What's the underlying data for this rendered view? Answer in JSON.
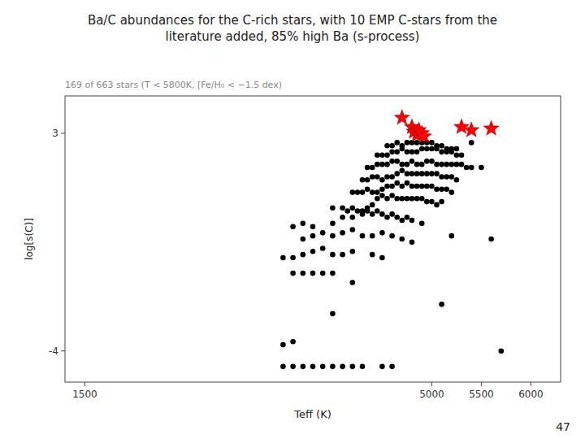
{
  "chart_data": {
    "type": "scatter",
    "title": "Ba/C abundances for the C-rich stars, with 10 EMP C-stars from the\nliterature added, 85% high Ba (s-process)",
    "subtitle": "169 of 663 stars (T < 5800K, [Fe/H₀ < −1.5 dex)",
    "xlabel": "Teff (K)",
    "ylabel": "log[s(C)]",
    "annotations": [
      "47"
    ],
    "xlim": [
      1300,
      6300
    ],
    "ylim": [
      -5.0,
      4.2
    ],
    "xticks": [
      1500,
      5000,
      5500,
      6000
    ],
    "yticks": [
      -4,
      3
    ],
    "grid": false,
    "color": "#ffffff",
    "series": [
      {
        "color": "black",
        "marker": "circle",
        "x": [
          3500,
          3600,
          3700,
          3800,
          3900,
          4000,
          4100,
          4200,
          4300,
          4500,
          4600,
          3500,
          3600,
          4000,
          5100,
          4200,
          5700,
          3600,
          3700,
          3800,
          3900,
          4000,
          3500,
          3600,
          3700,
          3800,
          3900,
          4000,
          4100,
          4200,
          4400,
          4500,
          3700,
          3800,
          3900,
          4000,
          4100,
          4200,
          4300,
          4400,
          4500,
          4600,
          4700,
          4800,
          5200,
          5600,
          3600,
          3700,
          3800,
          4000,
          4100,
          4200,
          4300,
          4350,
          4400,
          4450,
          4500,
          4550,
          4600,
          4650,
          4700,
          4750,
          4800,
          4900,
          4000,
          4100,
          4150,
          4200,
          4250,
          4300,
          4350,
          4400,
          4450,
          4500,
          4550,
          4600,
          4650,
          4700,
          4750,
          4800,
          4850,
          4900,
          4950,
          5000,
          5050,
          5100,
          4200,
          4250,
          4300,
          4350,
          4400,
          4450,
          4500,
          4550,
          4600,
          4650,
          4700,
          4750,
          4800,
          4850,
          4900,
          4950,
          5000,
          5050,
          5100,
          5150,
          5200,
          4300,
          4350,
          4400,
          4450,
          4500,
          4550,
          4600,
          4650,
          4700,
          4750,
          4800,
          4850,
          4900,
          4950,
          5000,
          5050,
          5100,
          5150,
          5200,
          5250,
          4350,
          4400,
          4450,
          4500,
          4550,
          4600,
          4650,
          4700,
          4750,
          4800,
          4850,
          4900,
          4950,
          5000,
          5050,
          5100,
          5150,
          5200,
          5250,
          5300,
          5350,
          5400,
          5500,
          4450,
          4500,
          4550,
          4600,
          4650,
          4700,
          4750,
          4800,
          4850,
          4900,
          4950,
          5000,
          5050,
          5100,
          5150,
          5200,
          5250,
          5300,
          4550,
          4600,
          4650,
          4700,
          4750,
          4800,
          4850,
          4900,
          4950,
          5000,
          5050,
          5100,
          5150,
          5200,
          5250,
          5400
        ],
        "values": [
          -4.5,
          -4.5,
          -4.5,
          -4.5,
          -4.5,
          -4.5,
          -4.5,
          -4.5,
          -4.5,
          -4.5,
          -4.5,
          -3.8,
          -3.7,
          -2.8,
          -2.5,
          -1.8,
          -4.0,
          -1.5,
          -1.5,
          -1.5,
          -1.5,
          -1.5,
          -1.0,
          -1.0,
          -0.9,
          -0.8,
          -0.7,
          -0.9,
          -0.9,
          -0.8,
          -0.9,
          -1.0,
          -0.4,
          -0.3,
          -0.2,
          -0.3,
          -0.2,
          -0.1,
          -0.3,
          -0.3,
          -0.2,
          -0.3,
          -0.4,
          -0.5,
          -0.3,
          -0.4,
          0.0,
          0.1,
          0.0,
          0.1,
          0.3,
          0.3,
          0.4,
          0.5,
          0.4,
          0.5,
          0.4,
          0.3,
          0.4,
          0.3,
          0.2,
          0.3,
          0.2,
          0.1,
          0.6,
          0.6,
          0.5,
          0.6,
          0.5,
          0.5,
          0.6,
          0.7,
          0.9,
          1.0,
          0.9,
          1.0,
          0.9,
          0.9,
          0.9,
          0.9,
          0.9,
          0.9,
          0.8,
          0.8,
          0.7,
          0.8,
          1.1,
          1.1,
          1.1,
          1.2,
          1.1,
          1.1,
          1.2,
          1.3,
          1.3,
          1.4,
          1.3,
          1.4,
          1.3,
          1.3,
          1.3,
          1.3,
          1.3,
          1.2,
          1.2,
          1.2,
          1.1,
          1.5,
          1.5,
          1.6,
          1.6,
          1.5,
          1.6,
          1.6,
          1.7,
          1.8,
          1.7,
          1.7,
          1.7,
          1.7,
          1.7,
          1.7,
          1.7,
          1.6,
          1.6,
          1.6,
          1.5,
          1.9,
          1.9,
          2.0,
          2.0,
          2.0,
          2.1,
          2.1,
          2.0,
          2.0,
          2.1,
          2.0,
          2.0,
          2.1,
          2.1,
          2.0,
          2.0,
          2.0,
          2.0,
          2.0,
          2.0,
          1.9,
          1.9,
          1.9,
          2.3,
          2.3,
          2.3,
          2.4,
          2.4,
          2.5,
          2.4,
          2.4,
          2.4,
          2.5,
          2.5,
          2.5,
          2.5,
          2.4,
          2.4,
          2.4,
          2.3,
          2.3,
          2.6,
          2.6,
          2.7,
          2.6,
          2.7,
          2.7,
          2.7,
          2.7,
          2.7,
          2.7,
          2.6,
          2.6,
          2.5,
          2.5,
          2.5,
          2.7
        ]
      },
      {
        "color": "red",
        "marker": "star",
        "x": [
          4700,
          4800,
          4820,
          4850,
          4870,
          4900,
          4920,
          5300,
          5400,
          5600
        ],
        "values": [
          3.5,
          3.2,
          3.05,
          2.95,
          3.1,
          3.0,
          2.9,
          3.2,
          3.1,
          3.15
        ]
      }
    ]
  }
}
